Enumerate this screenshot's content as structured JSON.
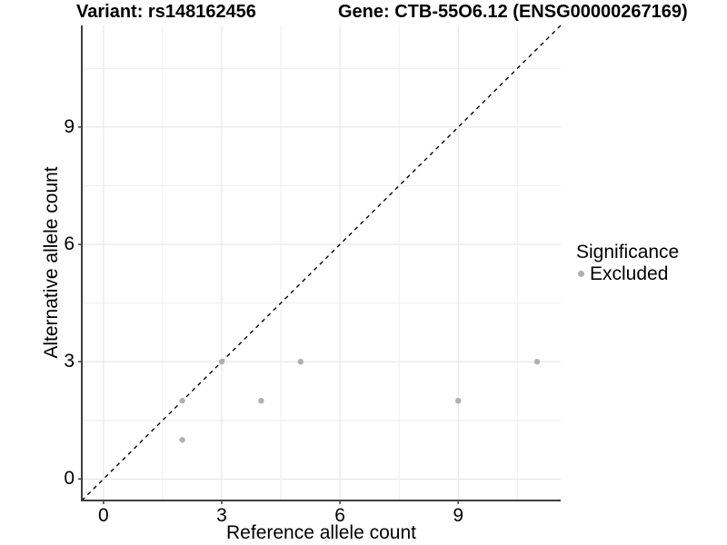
{
  "chart_data": {
    "type": "scatter",
    "title_left": "Variant: rs148162456",
    "title_right": "Gene: CTB-55O6.12 (ENSG00000267169)",
    "xlabel": "Reference allele count",
    "ylabel": "Alternative allele count",
    "xticks": [
      0,
      3,
      6,
      9
    ],
    "yticks": [
      0,
      3,
      6,
      9
    ],
    "xlim": [
      -0.55,
      11.6
    ],
    "ylim": [
      -0.55,
      11.6
    ],
    "minor_grid_step": 1.5,
    "grid": true,
    "series": [
      {
        "name": "Excluded",
        "color": "#b0b0b0",
        "points": [
          [
            2,
            1
          ],
          [
            2,
            2
          ],
          [
            3,
            3
          ],
          [
            4,
            2
          ],
          [
            5,
            3
          ],
          [
            9,
            2
          ],
          [
            11,
            3
          ]
        ]
      }
    ],
    "identity_line": {
      "equation": "y = x",
      "style": "dashed",
      "color": "#000000"
    },
    "legend": {
      "title": "Significance",
      "position": "right",
      "items": [
        {
          "label": "Excluded",
          "color": "#b0b0b0"
        }
      ]
    },
    "colors": {
      "background": "#ffffff",
      "grid_major": "#e3e3e3",
      "grid_minor": "#eeeeee",
      "axis_line": "#3f3f3f",
      "text": "#000000"
    }
  }
}
